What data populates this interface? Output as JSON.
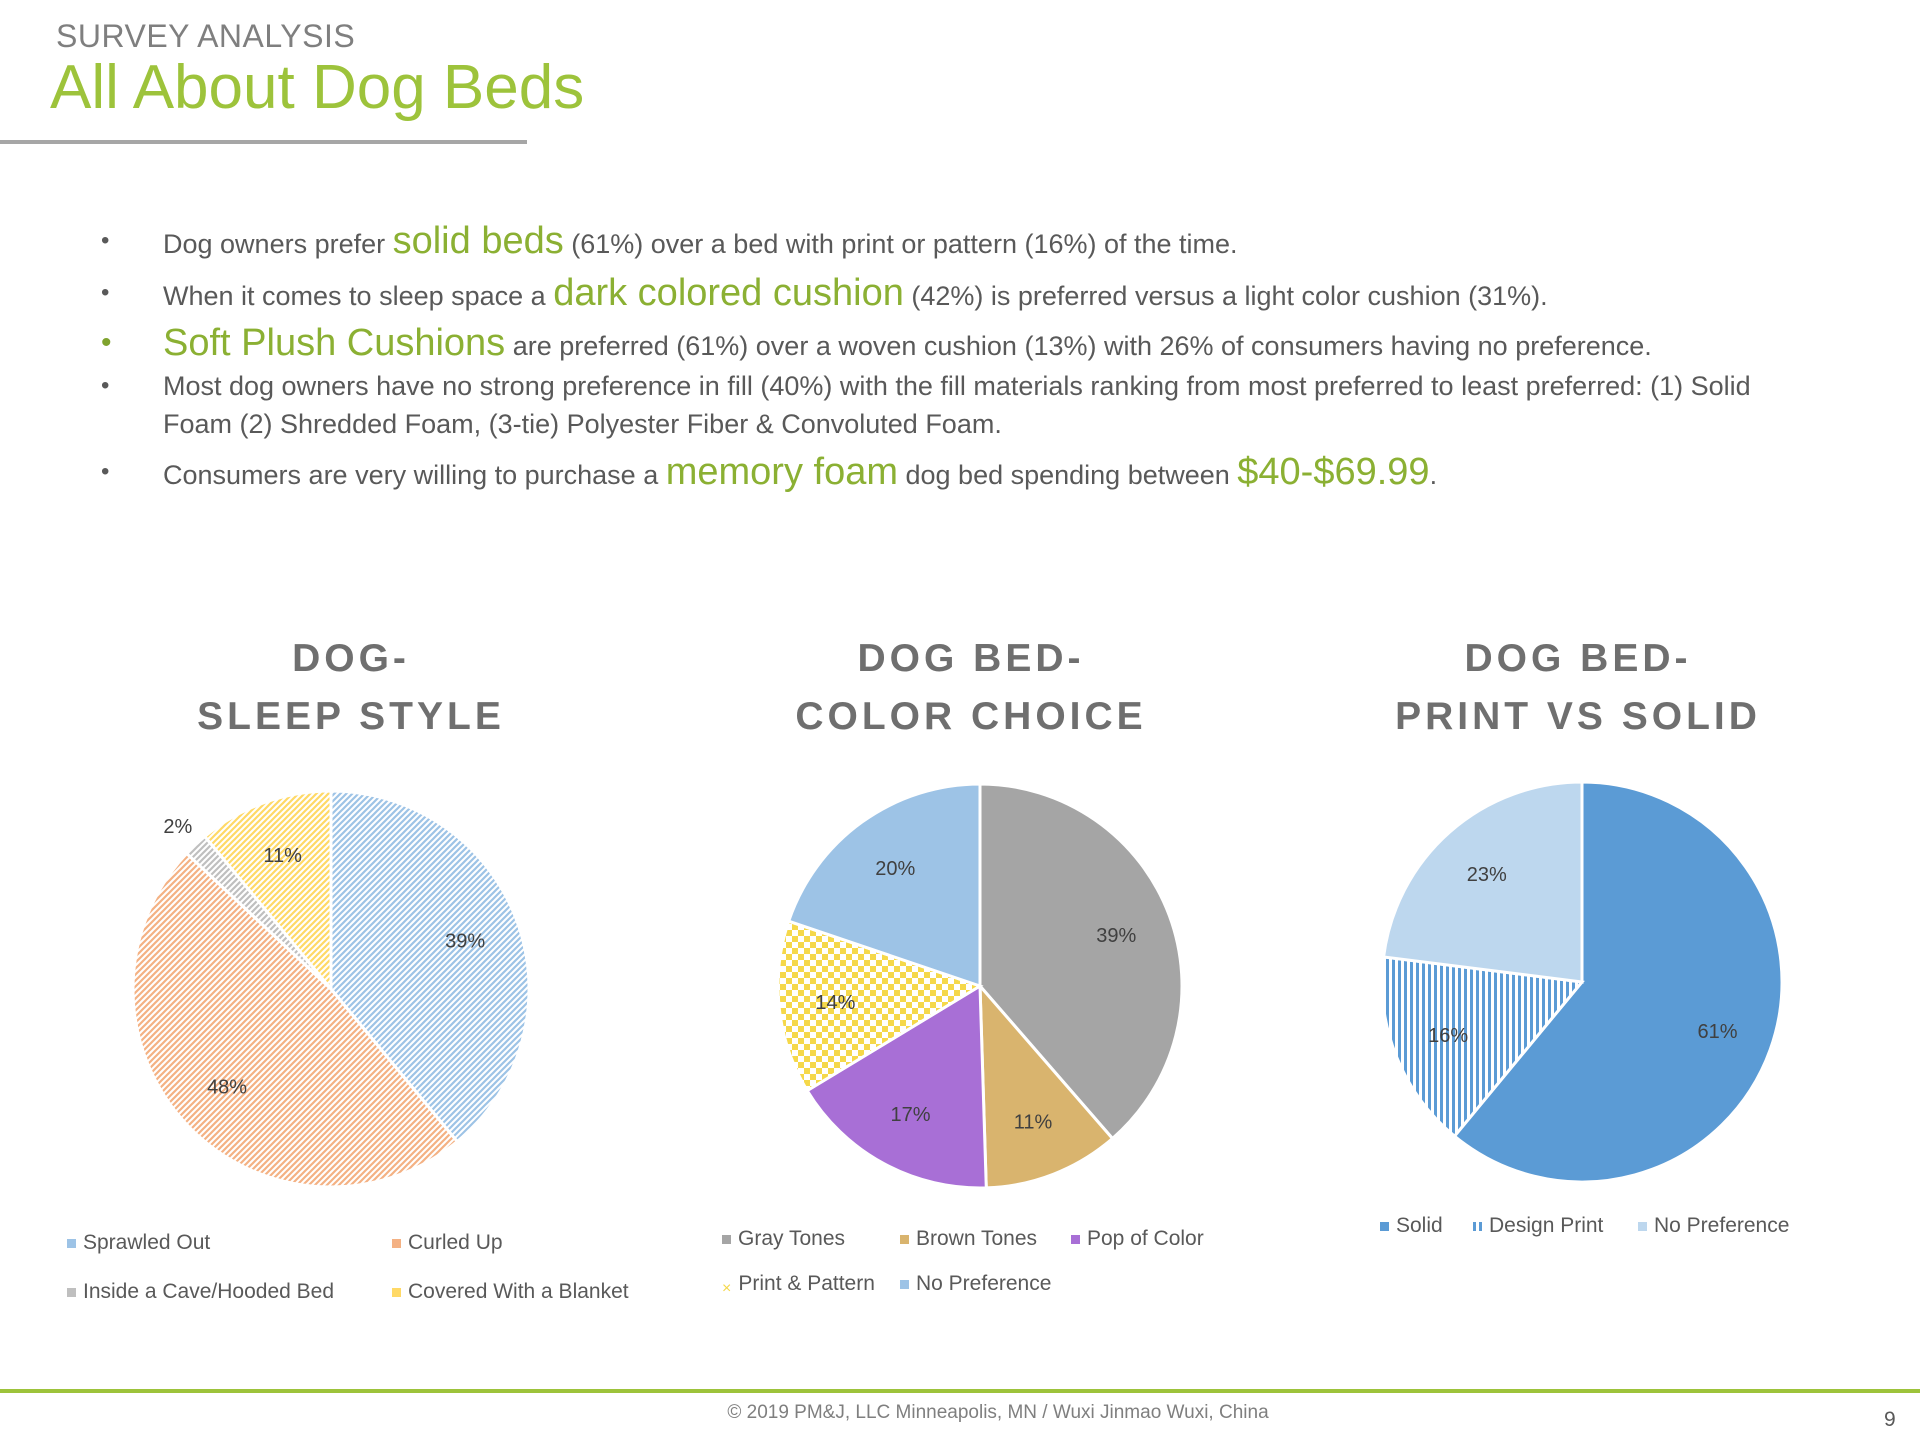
{
  "header": {
    "kicker": "SURVEY ANALYSIS",
    "title": "All About Dog Beds"
  },
  "bullets": [
    {
      "pre": "Dog owners prefer ",
      "hl": "solid beds",
      "post": " (61%) over a bed with print or pattern (16%) of the time."
    },
    {
      "pre": "When it comes to sleep space a ",
      "hl": "dark colored cushion",
      "post": " (42%) is preferred versus a light color cushion (31%)."
    },
    {
      "pre": "",
      "hl": "Soft Plush Cushions",
      "post": " are preferred (61%) over a woven cushion (13%) with 26% of consumers having no preference."
    },
    {
      "pre": "Most dog owners have no strong preference in fill (40%) with the fill materials ranking from most preferred to least preferred: (1) Solid Foam  (2) Shredded Foam, (3-tie) Polyester Fiber & Convoluted Foam.",
      "hl": "",
      "post": ""
    },
    {
      "pre": "Consumers are very willing to purchase a ",
      "hl": "memory foam",
      "post": " dog bed spending between ",
      "hl2": "$40-$69.99",
      "post2": "."
    }
  ],
  "chart_data": [
    {
      "type": "pie",
      "title_line1": "DOG-",
      "title_line2": "SLEEP STYLE",
      "categories": [
        "Sprawled Out",
        "Curled Up",
        "Inside a Cave/Hooded Bed",
        "Covered With a Blanket"
      ],
      "values": [
        39,
        48,
        2,
        11
      ],
      "labels": [
        "39%",
        "48%",
        "2%",
        "11%"
      ],
      "colors": [
        "#9dc3e6",
        "#f4b183",
        "#bfbfbf",
        "#ffd966"
      ],
      "patterns": [
        "hatch",
        "hatch",
        "hatch",
        "hatch"
      ],
      "legend": "bottom"
    },
    {
      "type": "pie",
      "title_line1": "DOG BED-",
      "title_line2": "COLOR CHOICE",
      "categories": [
        "Gray Tones",
        "Brown Tones",
        "Pop of Color",
        "Print & Pattern",
        "No Preference"
      ],
      "values": [
        39,
        11,
        17,
        14,
        20
      ],
      "labels": [
        "39%",
        "11%",
        "17%",
        "14%",
        "20%"
      ],
      "colors": [
        "#a5a5a5",
        "#d9b46e",
        "#a86fd6",
        "#f5d84a",
        "#9dc3e6"
      ],
      "patterns": [
        "solid",
        "solid",
        "solid",
        "checker",
        "solid"
      ],
      "legend": "bottom"
    },
    {
      "type": "pie",
      "title_line1": "DOG BED-",
      "title_line2": "PRINT VS SOLID",
      "categories": [
        "Solid",
        "Design Print",
        "No Preference"
      ],
      "values": [
        61,
        16,
        23
      ],
      "labels": [
        "61%",
        "16%",
        "23%"
      ],
      "colors": [
        "#5b9bd5",
        "#5b9bd5",
        "#bdd7ee"
      ],
      "patterns": [
        "solid",
        "vstripe",
        "solid"
      ],
      "legend": "bottom"
    }
  ],
  "footer": {
    "text": "© 2019 PM&J, LLC  Minneapolis, MN  /  Wuxi Jinmao  Wuxi, China",
    "page": "9"
  }
}
